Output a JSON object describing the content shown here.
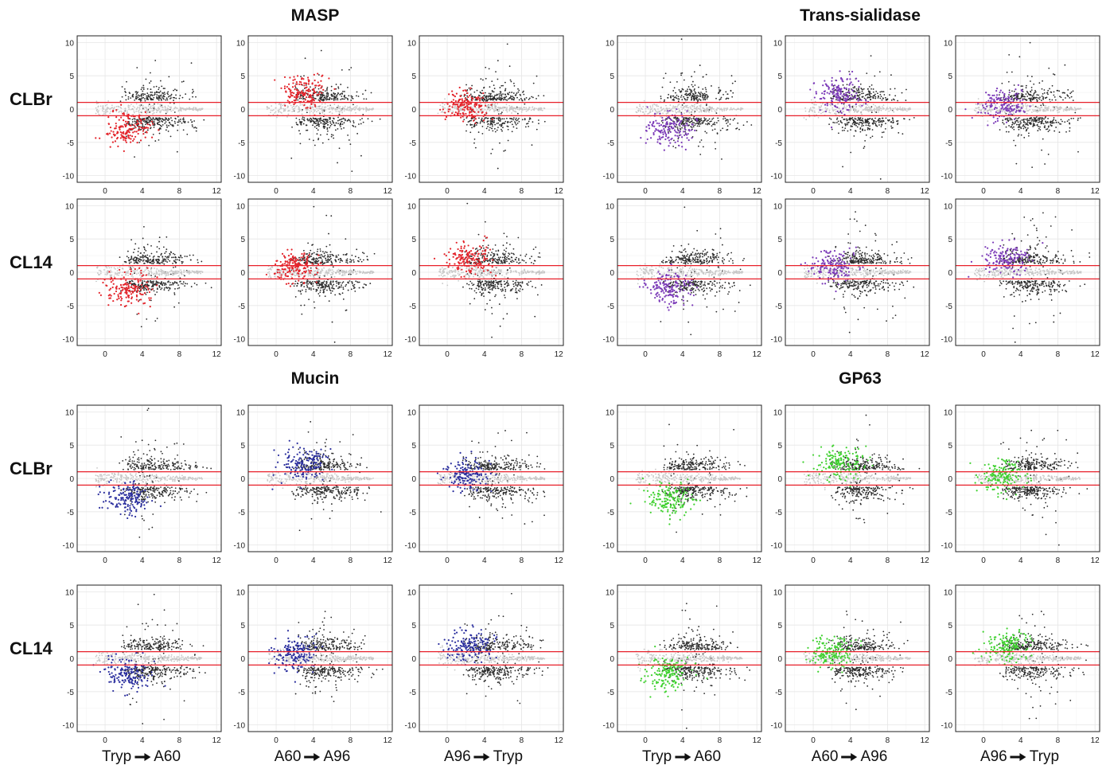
{
  "chart_data": {
    "type": "scatter",
    "groups": [
      {
        "title": "MASP",
        "highlight_color": "#e3242b"
      },
      {
        "title": "Trans-sialidase",
        "highlight_color": "#7b3ab8"
      },
      {
        "title": "Mucin",
        "highlight_color": "#2b2f9e"
      },
      {
        "title": "GP63",
        "highlight_color": "#3fd12f"
      }
    ],
    "rows": [
      "CLBr",
      "CL14",
      "CLBr",
      "CL14"
    ],
    "transitions": [
      {
        "from": "Tryp",
        "to": "A60"
      },
      {
        "from": "A60",
        "to": "A96"
      },
      {
        "from": "A96",
        "to": "Tryp"
      }
    ],
    "x_ticks": [
      "0",
      "4",
      "8",
      "12"
    ],
    "y_ticks": [
      "10",
      "5",
      "0",
      "-5",
      "-10"
    ],
    "xlim": [
      -3,
      12.5
    ],
    "ylim": [
      -11,
      11
    ],
    "reference_lines_y": [
      1,
      -1
    ],
    "reference_line_color": "#e8202a",
    "background_point_color": "#2b2b2b",
    "nonsignificant_point_color": "#c8c8c8",
    "grid": true,
    "highlight_centers": {
      "CLBr": [
        {
          "x": 2.5,
          "y": -3
        },
        {
          "x": 3,
          "y": 2
        },
        {
          "x": 2,
          "y": 0.5
        }
      ],
      "CL14": [
        {
          "x": 2.5,
          "y": -2.5
        },
        {
          "x": 2,
          "y": 0.5
        },
        {
          "x": 2.5,
          "y": 2
        }
      ]
    }
  }
}
